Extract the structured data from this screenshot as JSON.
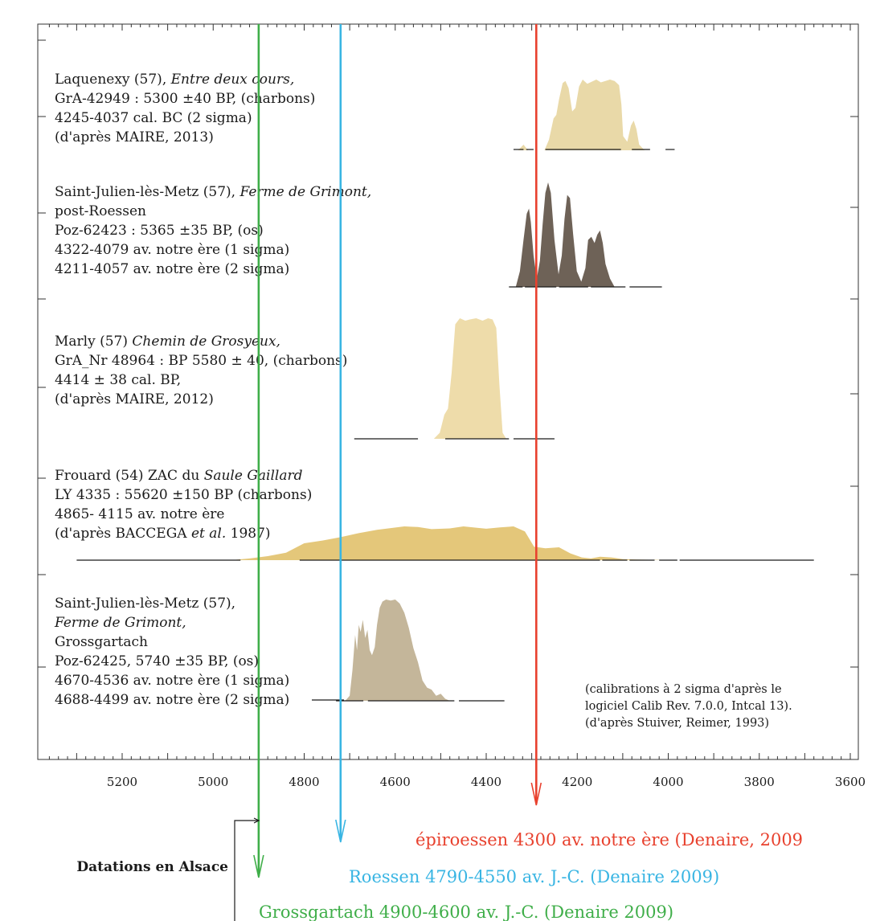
{
  "chart_data": {
    "type": "area",
    "xlabel": "",
    "ylabel": "",
    "x_ticks": [
      5200,
      5000,
      4800,
      4600,
      4400,
      4200,
      4000,
      3800,
      3600
    ],
    "xlim": [
      5370,
      3600
    ],
    "x_reversed": true,
    "note": [
      "(calibrations à 2 sigma d'après le",
      "logiciel Calib Rev. 7.0.0, Intcal 13).",
      "(d'après Stuiver, Reimer, 1993)"
    ],
    "series": [
      {
        "lines": [
          {
            "text": "Laquenexy (57), "
          },
          {
            "text": "GrA-42949 : 5300 ±40 BP, (charbons)"
          },
          {
            "text": "4245-4037 cal. BC (2 sigma)"
          },
          {
            "text": "(d'après MAIRE, 2013)"
          }
        ],
        "italic_parts": {
          "0": "Entre deux cours,"
        },
        "color": "#e9d9a8",
        "range_2sigma": [
          4245,
          4037
        ],
        "bars": [
          [
            4340,
            4318
          ],
          [
            4312,
            4296
          ],
          [
            4270,
            4104
          ],
          [
            4080,
            4040
          ],
          [
            4006,
            3986
          ]
        ],
        "profile": [
          [
            4330,
            0
          ],
          [
            4318,
            0.08
          ],
          [
            4308,
            0
          ],
          [
            4272,
            0
          ],
          [
            4262,
            0.15
          ],
          [
            4252,
            0.45
          ],
          [
            4246,
            0.5
          ],
          [
            4240,
            0.72
          ],
          [
            4232,
            0.95
          ],
          [
            4226,
            0.98
          ],
          [
            4219,
            0.88
          ],
          [
            4211,
            0.55
          ],
          [
            4204,
            0.6
          ],
          [
            4196,
            0.9
          ],
          [
            4188,
            1.0
          ],
          [
            4178,
            0.94
          ],
          [
            4168,
            0.97
          ],
          [
            4158,
            1.0
          ],
          [
            4148,
            0.96
          ],
          [
            4138,
            0.98
          ],
          [
            4128,
            1.0
          ],
          [
            4118,
            0.98
          ],
          [
            4108,
            0.92
          ],
          [
            4103,
            0.65
          ],
          [
            4099,
            0.2
          ],
          [
            4090,
            0.12
          ],
          [
            4082,
            0.35
          ],
          [
            4076,
            0.42
          ],
          [
            4070,
            0.3
          ],
          [
            4064,
            0.08
          ],
          [
            4052,
            0
          ]
        ]
      },
      {
        "lines": [
          {
            "text": "Saint-Julien-lès-Metz (57), "
          },
          {
            "text": "post-Roessen"
          },
          {
            "text": "Poz-62423 : 5365 ±35 BP, (os)"
          },
          {
            "text": "4322-4079 av. notre ère (1 sigma)"
          },
          {
            "text": "4211-4057 av. notre ère (2 sigma)"
          }
        ],
        "italic_parts": {
          "0": "Ferme de Grimont,"
        },
        "color": "#6e6257",
        "range_2sigma": [
          4211,
          4057
        ],
        "bars": [
          [
            4350,
            4320
          ],
          [
            4315,
            4246
          ],
          [
            4240,
            4176
          ],
          [
            4170,
            4094
          ],
          [
            4085,
            4014
          ]
        ],
        "profile": [
          [
            4335,
            0
          ],
          [
            4326,
            0.15
          ],
          [
            4318,
            0.45
          ],
          [
            4311,
            0.7
          ],
          [
            4306,
            0.75
          ],
          [
            4302,
            0.62
          ],
          [
            4296,
            0.3
          ],
          [
            4289,
            0.08
          ],
          [
            4282,
            0.25
          ],
          [
            4276,
            0.6
          ],
          [
            4270,
            0.9
          ],
          [
            4264,
            1.0
          ],
          [
            4258,
            0.9
          ],
          [
            4250,
            0.45
          ],
          [
            4241,
            0.12
          ],
          [
            4234,
            0.3
          ],
          [
            4228,
            0.65
          ],
          [
            4222,
            0.88
          ],
          [
            4216,
            0.85
          ],
          [
            4209,
            0.5
          ],
          [
            4201,
            0.15
          ],
          [
            4191,
            0.05
          ],
          [
            4182,
            0.18
          ],
          [
            4176,
            0.45
          ],
          [
            4169,
            0.48
          ],
          [
            4162,
            0.42
          ],
          [
            4156,
            0.5
          ],
          [
            4150,
            0.54
          ],
          [
            4144,
            0.42
          ],
          [
            4138,
            0.22
          ],
          [
            4128,
            0.08
          ],
          [
            4118,
            0
          ]
        ]
      },
      {
        "lines": [
          {
            "text": "Marly (57) "
          },
          {
            "text": "GrA_Nr 48964 : BP 5580 ±  40, (charbons)"
          },
          {
            "text": "4414 ± 38 cal. BP,"
          },
          {
            "text": "(d'après MAIRE, 2012)"
          }
        ],
        "italic_parts": {
          "0": "Chemin de Grosyeux,"
        },
        "color": "#eedcaa",
        "range_2sigma": [
          4414,
          4376
        ],
        "bars": [
          [
            4690,
            4550
          ],
          [
            4490,
            4350
          ],
          [
            4340,
            4250
          ]
        ],
        "profile": [
          [
            4515,
            0
          ],
          [
            4502,
            0.05
          ],
          [
            4492,
            0.2
          ],
          [
            4484,
            0.25
          ],
          [
            4476,
            0.55
          ],
          [
            4468,
            0.95
          ],
          [
            4458,
            1.0
          ],
          [
            4446,
            0.98
          ],
          [
            4436,
            0.99
          ],
          [
            4422,
            1.0
          ],
          [
            4408,
            0.98
          ],
          [
            4396,
            1.0
          ],
          [
            4386,
            0.99
          ],
          [
            4378,
            0.92
          ],
          [
            4371,
            0.45
          ],
          [
            4364,
            0.05
          ],
          [
            4356,
            0
          ]
        ]
      },
      {
        "lines": [
          {
            "text": "Frouard (54) ZAC du "
          },
          {
            "text": "LY 4335 : 55620 ±150 BP (charbons)"
          },
          {
            "text": "4865- 4115 av. notre ère"
          },
          {
            "text": "(d'après BACCEGA  1987)"
          }
        ],
        "italic_parts": {
          "0": "Saule Gaillard",
          "3": "et al."
        },
        "color": "#e4c77a",
        "range_2sigma": [
          4865,
          4115
        ],
        "bars": [
          [
            5300,
            4940
          ],
          [
            4810,
            4150
          ],
          [
            4145,
            4090
          ],
          [
            4085,
            4030
          ],
          [
            4020,
            3980
          ],
          [
            3975,
            3680
          ]
        ],
        "profile": [
          [
            4960,
            0
          ],
          [
            4920,
            0.05
          ],
          [
            4880,
            0.12
          ],
          [
            4840,
            0.22
          ],
          [
            4800,
            0.5
          ],
          [
            4760,
            0.58
          ],
          [
            4720,
            0.68
          ],
          [
            4680,
            0.8
          ],
          [
            4640,
            0.9
          ],
          [
            4610,
            0.95
          ],
          [
            4580,
            1.0
          ],
          [
            4550,
            0.98
          ],
          [
            4520,
            0.92
          ],
          [
            4480,
            0.94
          ],
          [
            4450,
            1.0
          ],
          [
            4420,
            0.96
          ],
          [
            4400,
            0.93
          ],
          [
            4370,
            0.97
          ],
          [
            4340,
            1.0
          ],
          [
            4315,
            0.85
          ],
          [
            4295,
            0.4
          ],
          [
            4270,
            0.35
          ],
          [
            4240,
            0.38
          ],
          [
            4215,
            0.2
          ],
          [
            4190,
            0.08
          ],
          [
            4170,
            0.05
          ],
          [
            4150,
            0.1
          ],
          [
            4125,
            0.08
          ],
          [
            4100,
            0.03
          ],
          [
            4070,
            0.02
          ],
          [
            4030,
            0.01
          ],
          [
            3990,
            0
          ]
        ]
      },
      {
        "lines": [
          {
            "text": "Saint-Julien-lès-Metz (57),"
          },
          {
            "text": ""
          },
          {
            "text": "Grossgartach"
          },
          {
            "text": "Poz-62425, 5740 ±35 BP, (os)"
          },
          {
            "text": "4670-4536 av. notre ère (1 sigma)"
          },
          {
            "text": "4688-4499 av. notre ère (2 sigma)"
          }
        ],
        "italic_parts": {
          "1": "Ferme de Grimont,"
        },
        "color": "#c4b69a",
        "range_2sigma": [
          4688,
          4499
        ],
        "bars": [
          [
            4730,
            4670
          ],
          [
            4660,
            4470
          ],
          [
            4460,
            4360
          ]
        ],
        "profile": [
          [
            4710,
            0
          ],
          [
            4700,
            0.05
          ],
          [
            4694,
            0.3
          ],
          [
            4688,
            0.65
          ],
          [
            4684,
            0.5
          ],
          [
            4680,
            0.75
          ],
          [
            4676,
            0.68
          ],
          [
            4671,
            0.8
          ],
          [
            4666,
            0.62
          ],
          [
            4661,
            0.7
          ],
          [
            4656,
            0.5
          ],
          [
            4651,
            0.45
          ],
          [
            4645,
            0.53
          ],
          [
            4640,
            0.75
          ],
          [
            4634,
            0.92
          ],
          [
            4628,
            0.98
          ],
          [
            4620,
            1.0
          ],
          [
            4610,
            0.99
          ],
          [
            4600,
            1.0
          ],
          [
            4590,
            0.96
          ],
          [
            4580,
            0.87
          ],
          [
            4570,
            0.72
          ],
          [
            4560,
            0.52
          ],
          [
            4550,
            0.38
          ],
          [
            4540,
            0.2
          ],
          [
            4530,
            0.13
          ],
          [
            4520,
            0.11
          ],
          [
            4510,
            0.05
          ],
          [
            4500,
            0.07
          ],
          [
            4490,
            0.02
          ],
          [
            4480,
            0
          ]
        ]
      }
    ],
    "reference_lines": [
      {
        "x": 4900,
        "color": "#3fae49",
        "label": "Grossgartach 4900-4600 av. J.-C. (Denaire 2009)"
      },
      {
        "x": 4720,
        "color": "#39b5e3",
        "label": "Roessen 4790-4550 av. J.-C. (Denaire 2009)"
      },
      {
        "x": 4290,
        "color": "#e8412e",
        "label": "épiroessen 4300 av. notre ère (Denaire, 2009"
      }
    ],
    "side_label": "Datations en Alsace"
  }
}
